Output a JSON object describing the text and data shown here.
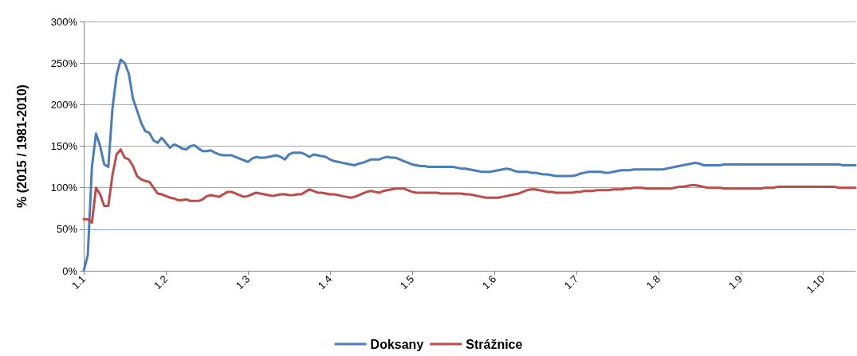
{
  "chart_data": {
    "type": "line",
    "ylabel": "% (2015 / 1981-2010)",
    "categories": [
      "1.1",
      null,
      null,
      null,
      null,
      null,
      null,
      null,
      null,
      null,
      null,
      null,
      null,
      null,
      null,
      null,
      null,
      null,
      null,
      null,
      "1.2",
      null,
      null,
      null,
      null,
      null,
      null,
      null,
      null,
      null,
      null,
      null,
      null,
      null,
      null,
      null,
      null,
      null,
      null,
      null,
      "1.3",
      null,
      null,
      null,
      null,
      null,
      null,
      null,
      null,
      null,
      null,
      null,
      null,
      null,
      null,
      null,
      null,
      null,
      null,
      null,
      "1.4",
      null,
      null,
      null,
      null,
      null,
      null,
      null,
      null,
      null,
      null,
      null,
      null,
      null,
      null,
      null,
      null,
      null,
      null,
      null,
      "1.5",
      null,
      null,
      null,
      null,
      null,
      null,
      null,
      null,
      null,
      null,
      null,
      null,
      null,
      null,
      null,
      null,
      null,
      null,
      null,
      "1.6",
      null,
      null,
      null,
      null,
      null,
      null,
      null,
      null,
      null,
      null,
      null,
      null,
      null,
      null,
      null,
      null,
      null,
      null,
      null,
      "1.7",
      null,
      null,
      null,
      null,
      null,
      null,
      null,
      null,
      null,
      null,
      null,
      null,
      null,
      null,
      null,
      null,
      null,
      null,
      null,
      "1.8",
      null,
      null,
      null,
      null,
      null,
      null,
      null,
      null,
      null,
      null,
      null,
      null,
      null,
      null,
      null,
      null,
      null,
      null,
      null,
      "1.9",
      null,
      null,
      null,
      null,
      null,
      null,
      null,
      null,
      null,
      null,
      null,
      null,
      null,
      null,
      null,
      null,
      null,
      null,
      null,
      "1.10",
      null,
      null,
      null,
      null,
      null,
      null,
      null,
      null
    ],
    "series": [
      {
        "name": "Doksany",
        "color": "#4a7ebb",
        "values": [
          0,
          19,
          125,
          165,
          150,
          128,
          125,
          195,
          235,
          254,
          250,
          237,
          207,
          193,
          178,
          168,
          166,
          157,
          154,
          160,
          154,
          148,
          152,
          150,
          147,
          146,
          150,
          151,
          147,
          144,
          144,
          145,
          142,
          140,
          139,
          139,
          139,
          137,
          135,
          133,
          131,
          135,
          137,
          136,
          136,
          137,
          138,
          139,
          137,
          134,
          140,
          142,
          142,
          142,
          140,
          137,
          140,
          139,
          138,
          137,
          134,
          132,
          131,
          130,
          129,
          128,
          127,
          129,
          130,
          132,
          134,
          134,
          134,
          136,
          137,
          136,
          136,
          134,
          132,
          130,
          128,
          127,
          126,
          126,
          125,
          125,
          125,
          125,
          125,
          125,
          125,
          124,
          123,
          123,
          122,
          121,
          120,
          119,
          119,
          119,
          120,
          121,
          122,
          123,
          122,
          120,
          119,
          119,
          119,
          118,
          118,
          117,
          116,
          116,
          115,
          114,
          114,
          114,
          114,
          114,
          115,
          117,
          118,
          119,
          119,
          119,
          119,
          118,
          118,
          119,
          120,
          121,
          121,
          121,
          122,
          122,
          122,
          122,
          122,
          122,
          122,
          122,
          123,
          124,
          125,
          126,
          127,
          128,
          129,
          130,
          129,
          127,
          127,
          127,
          127,
          127,
          128,
          128,
          128,
          128,
          128,
          128,
          128,
          128,
          128,
          128,
          128,
          128,
          128,
          128,
          128,
          128,
          128,
          128,
          128,
          128,
          128,
          128,
          128,
          128,
          128,
          128,
          128,
          128,
          128,
          127,
          127,
          127,
          127
        ]
      },
      {
        "name": "Strážnice",
        "color": "#be4b48",
        "values": [
          62,
          62,
          58,
          100,
          92,
          78,
          78,
          115,
          140,
          146,
          136,
          134,
          126,
          114,
          110,
          108,
          107,
          100,
          93,
          92,
          90,
          88,
          87,
          85,
          85,
          86,
          84,
          84,
          84,
          86,
          90,
          91,
          90,
          89,
          92,
          95,
          95,
          93,
          91,
          89,
          90,
          92,
          94,
          93,
          92,
          91,
          90,
          91,
          92,
          92,
          91,
          91,
          92,
          92,
          95,
          98,
          96,
          94,
          94,
          93,
          92,
          92,
          91,
          90,
          89,
          88,
          89,
          91,
          93,
          95,
          96,
          95,
          94,
          96,
          97,
          98,
          99,
          99,
          99,
          97,
          95,
          94,
          94,
          94,
          94,
          94,
          94,
          93,
          93,
          93,
          93,
          93,
          93,
          92,
          92,
          91,
          90,
          89,
          88,
          88,
          88,
          88,
          89,
          90,
          91,
          92,
          93,
          95,
          97,
          98,
          98,
          97,
          96,
          95,
          95,
          94,
          94,
          94,
          94,
          94,
          95,
          95,
          96,
          96,
          96,
          97,
          97,
          97,
          97,
          98,
          98,
          98,
          99,
          99,
          100,
          100,
          100,
          99,
          99,
          99,
          99,
          99,
          99,
          99,
          100,
          101,
          101,
          102,
          103,
          103,
          102,
          101,
          100,
          100,
          100,
          100,
          99,
          99,
          99,
          99,
          99,
          99,
          99,
          99,
          99,
          99,
          100,
          100,
          100,
          101,
          101,
          101,
          101,
          101,
          101,
          101,
          101,
          101,
          101,
          101,
          101,
          101,
          101,
          101,
          100,
          100,
          100,
          100,
          100
        ]
      }
    ],
    "ylim": [
      0,
      300
    ],
    "yticks": [
      {
        "value": 0,
        "label": "0%"
      },
      {
        "value": 50,
        "label": "50%"
      },
      {
        "value": 100,
        "label": "100%"
      },
      {
        "value": 150,
        "label": "150%"
      },
      {
        "value": 200,
        "label": "200%"
      },
      {
        "value": 250,
        "label": "250%"
      },
      {
        "value": 300,
        "label": "300%"
      }
    ],
    "grid": "y",
    "legend": "bottom",
    "marker": "none",
    "line_style": "solid"
  }
}
